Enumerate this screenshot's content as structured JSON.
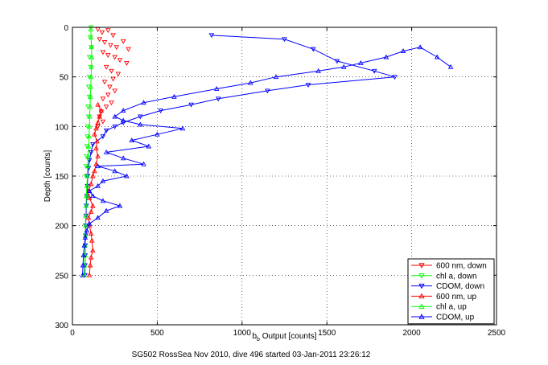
{
  "chart_data": {
    "type": "scatter",
    "xlabel_base": "b",
    "xlabel_sub": "b",
    "xlabel_rest": " Output [counts]",
    "ylabel": "Depth [counts]",
    "footer": "SG502 RossSea Nov 2010, dive 496 started 03-Jan-2011 23:26:12",
    "xlim": [
      0,
      2500
    ],
    "ylim": [
      0,
      300
    ],
    "y_reversed": true,
    "x_ticks": [
      0,
      500,
      1000,
      1500,
      2000,
      2500
    ],
    "y_ticks": [
      0,
      50,
      100,
      150,
      200,
      250,
      300
    ],
    "grid": "dotted",
    "legend_position": "bottom-right",
    "colors": {
      "red": "#ff0000",
      "green": "#00ff00",
      "blue": "#0000ff"
    },
    "series": [
      {
        "name": "600 nm, down",
        "color": "#ff0000",
        "marker": "triangle-down",
        "line": false,
        "points": [
          [
            150,
            2
          ],
          [
            175,
            5
          ],
          [
            210,
            3
          ],
          [
            240,
            8
          ],
          [
            160,
            12
          ],
          [
            190,
            15
          ],
          [
            225,
            18
          ],
          [
            260,
            20
          ],
          [
            300,
            14
          ],
          [
            330,
            22
          ],
          [
            180,
            25
          ],
          [
            210,
            28
          ],
          [
            250,
            30
          ],
          [
            280,
            33
          ],
          [
            320,
            36
          ],
          [
            200,
            40
          ],
          [
            230,
            44
          ],
          [
            270,
            47
          ],
          [
            240,
            52
          ],
          [
            190,
            55
          ],
          [
            220,
            60
          ],
          [
            250,
            64
          ],
          [
            210,
            68
          ],
          [
            180,
            72
          ],
          [
            230,
            76
          ],
          [
            200,
            80
          ],
          [
            170,
            85
          ],
          [
            160,
            90
          ],
          [
            180,
            95
          ],
          [
            150,
            100
          ]
        ]
      },
      {
        "name": "chl a, down",
        "color": "#00ff00",
        "marker": "triangle-down",
        "line": false,
        "points": [
          [
            110,
            0
          ],
          [
            105,
            10
          ],
          [
            112,
            20
          ],
          [
            100,
            30
          ],
          [
            108,
            40
          ],
          [
            100,
            50
          ],
          [
            95,
            60
          ],
          [
            100,
            70
          ],
          [
            92,
            80
          ],
          [
            95,
            90
          ],
          [
            90,
            100
          ],
          [
            88,
            110
          ],
          [
            85,
            120
          ],
          [
            82,
            130
          ],
          [
            80,
            140
          ],
          [
            78,
            150
          ]
        ]
      },
      {
        "name": "CDOM, down",
        "color": "#0000ff",
        "marker": "triangle-down",
        "line": true,
        "points": [
          [
            820,
            8
          ],
          [
            1250,
            12
          ],
          [
            1420,
            22
          ],
          [
            1560,
            34
          ],
          [
            1780,
            44
          ],
          [
            1900,
            50
          ],
          [
            1390,
            58
          ],
          [
            1150,
            64
          ],
          [
            860,
            72
          ],
          [
            700,
            78
          ],
          [
            520,
            84
          ],
          [
            400,
            90
          ],
          [
            300,
            96
          ],
          [
            250,
            100
          ],
          [
            200,
            104
          ],
          [
            180,
            110
          ],
          [
            120,
            118
          ],
          [
            110,
            126
          ],
          [
            100,
            134
          ],
          [
            95,
            142
          ],
          [
            90,
            150
          ],
          [
            88,
            160
          ],
          [
            85,
            170
          ],
          [
            82,
            180
          ],
          [
            80,
            190
          ],
          [
            78,
            200
          ],
          [
            78,
            210
          ],
          [
            76,
            220
          ],
          [
            75,
            230
          ],
          [
            74,
            240
          ],
          [
            74,
            250
          ]
        ]
      },
      {
        "name": "600 nm, up",
        "color": "#ff0000",
        "marker": "triangle-up",
        "line": true,
        "points": [
          [
            100,
            250
          ],
          [
            105,
            240
          ],
          [
            110,
            232
          ],
          [
            120,
            225
          ],
          [
            115,
            215
          ],
          [
            110,
            208
          ],
          [
            100,
            200
          ],
          [
            95,
            192
          ],
          [
            110,
            186
          ],
          [
            120,
            180
          ],
          [
            100,
            172
          ],
          [
            95,
            165
          ],
          [
            110,
            158
          ],
          [
            120,
            150
          ],
          [
            130,
            145
          ],
          [
            140,
            138
          ],
          [
            150,
            130
          ],
          [
            140,
            122
          ],
          [
            145,
            115
          ],
          [
            130,
            108
          ],
          [
            140,
            102
          ],
          [
            150,
            96
          ],
          [
            160,
            90
          ],
          [
            170,
            84
          ],
          [
            150,
            78
          ]
        ]
      },
      {
        "name": "chl a, up",
        "color": "#00ff00",
        "marker": "triangle-up",
        "line": true,
        "points": [
          [
            70,
            250
          ],
          [
            72,
            240
          ],
          [
            74,
            230
          ],
          [
            75,
            220
          ],
          [
            76,
            210
          ],
          [
            77,
            200
          ],
          [
            78,
            190
          ],
          [
            80,
            180
          ],
          [
            82,
            170
          ],
          [
            85,
            160
          ],
          [
            88,
            150
          ],
          [
            90,
            140
          ],
          [
            92,
            130
          ],
          [
            95,
            120
          ],
          [
            98,
            110
          ],
          [
            100,
            100
          ],
          [
            102,
            90
          ],
          [
            104,
            80
          ],
          [
            106,
            70
          ],
          [
            108,
            60
          ],
          [
            110,
            50
          ],
          [
            112,
            40
          ],
          [
            114,
            30
          ],
          [
            112,
            20
          ],
          [
            110,
            10
          ],
          [
            108,
            2
          ]
        ]
      },
      {
        "name": "CDOM, up",
        "color": "#0000ff",
        "marker": "triangle-up",
        "line": true,
        "points": [
          [
            60,
            250
          ],
          [
            62,
            240
          ],
          [
            65,
            230
          ],
          [
            70,
            220
          ],
          [
            75,
            212
          ],
          [
            85,
            205
          ],
          [
            100,
            198
          ],
          [
            150,
            192
          ],
          [
            200,
            185
          ],
          [
            280,
            180
          ],
          [
            180,
            175
          ],
          [
            120,
            170
          ],
          [
            100,
            165
          ],
          [
            150,
            160
          ],
          [
            180,
            155
          ],
          [
            320,
            150
          ],
          [
            250,
            145
          ],
          [
            150,
            140
          ],
          [
            420,
            138
          ],
          [
            300,
            132
          ],
          [
            200,
            126
          ],
          [
            450,
            120
          ],
          [
            350,
            114
          ],
          [
            500,
            108
          ],
          [
            650,
            102
          ],
          [
            400,
            98
          ],
          [
            300,
            94
          ],
          [
            250,
            90
          ],
          [
            300,
            84
          ],
          [
            420,
            76
          ],
          [
            600,
            70
          ],
          [
            850,
            62
          ],
          [
            1050,
            56
          ],
          [
            1200,
            50
          ],
          [
            1450,
            44
          ],
          [
            1600,
            40
          ],
          [
            1700,
            36
          ],
          [
            1850,
            30
          ],
          [
            1950,
            24
          ],
          [
            2050,
            20
          ],
          [
            2150,
            30
          ],
          [
            2230,
            40
          ]
        ]
      }
    ]
  }
}
